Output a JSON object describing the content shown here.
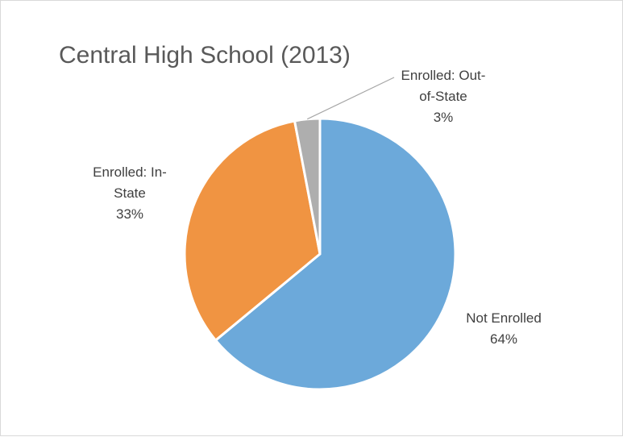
{
  "chart_data": {
    "type": "pie",
    "title": "Central High School (2013)",
    "slices": [
      {
        "name": "Not Enrolled",
        "value": 64,
        "color": "#6CA9DA",
        "label_lines": [
          "Not Enrolled",
          "64%"
        ]
      },
      {
        "name": "Enrolled: In-State",
        "value": 33,
        "color": "#F09442",
        "label_lines": [
          "Enrolled: In-",
          "State",
          "33%"
        ]
      },
      {
        "name": "Enrolled: Out-of-State",
        "value": 3,
        "color": "#AEAEAE",
        "label_lines": [
          "Enrolled: Out-",
          "of-State",
          "3%"
        ]
      }
    ],
    "legend": "none",
    "data_labels": "category name and percentage"
  }
}
